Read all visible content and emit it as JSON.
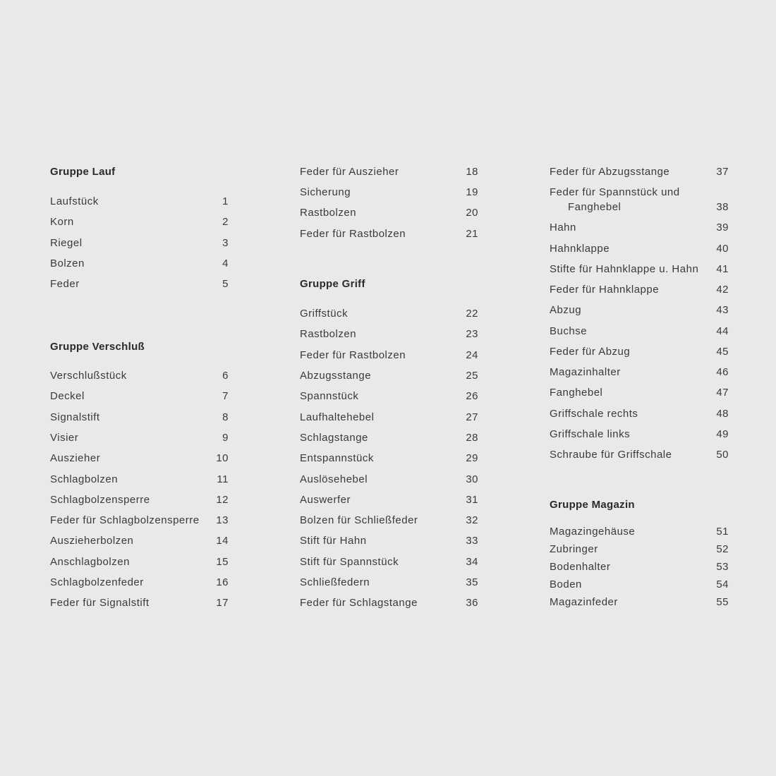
{
  "columns": [
    {
      "sections": [
        {
          "title": "Gruppe Lauf",
          "items": [
            {
              "label": "Laufstück",
              "num": "1"
            },
            {
              "label": "Korn",
              "num": "2"
            },
            {
              "label": "Riegel",
              "num": "3"
            },
            {
              "label": "Bolzen",
              "num": "4"
            },
            {
              "label": "Feder",
              "num": "5"
            }
          ]
        },
        {
          "title": "Gruppe Verschluß",
          "items": [
            {
              "label": "Verschlußstück",
              "num": "6"
            },
            {
              "label": "Deckel",
              "num": "7"
            },
            {
              "label": "Signalstift",
              "num": "8"
            },
            {
              "label": "Visier",
              "num": "9"
            },
            {
              "label": "Auszieher",
              "num": "10"
            },
            {
              "label": "Schlagbolzen",
              "num": "11"
            },
            {
              "label": "Schlagbolzensperre",
              "num": "12"
            },
            {
              "label": "Feder für Schlagbolzensperre",
              "num": "13"
            },
            {
              "label": "Auszieherbolzen",
              "num": "14"
            },
            {
              "label": "Anschlagbolzen",
              "num": "15"
            },
            {
              "label": "Schlagbolzenfeder",
              "num": "16"
            },
            {
              "label": "Feder für Signalstift",
              "num": "17"
            }
          ]
        }
      ]
    },
    {
      "sections": [
        {
          "title": "",
          "items": [
            {
              "label": "Feder für Auszieher",
              "num": "18"
            },
            {
              "label": "Sicherung",
              "num": "19"
            },
            {
              "label": "Rastbolzen",
              "num": "20"
            },
            {
              "label": "Feder für Rastbolzen",
              "num": "21"
            }
          ]
        },
        {
          "title": "Gruppe Griff",
          "items": [
            {
              "label": "Griffstück",
              "num": "22"
            },
            {
              "label": "Rastbolzen",
              "num": "23"
            },
            {
              "label": "Feder für Rastbolzen",
              "num": "24"
            },
            {
              "label": "Abzugsstange",
              "num": "25"
            },
            {
              "label": "Spannstück",
              "num": "26"
            },
            {
              "label": "Laufhaltehebel",
              "num": "27"
            },
            {
              "label": "Schlagstange",
              "num": "28"
            },
            {
              "label": "Entspannstück",
              "num": "29"
            },
            {
              "label": "Auslösehebel",
              "num": "30"
            },
            {
              "label": "Auswerfer",
              "num": "31"
            },
            {
              "label": "Bolzen für Schließfeder",
              "num": "32"
            },
            {
              "label": "Stift für Hahn",
              "num": "33"
            },
            {
              "label": "Stift für Spannstück",
              "num": "34"
            },
            {
              "label": "Schließfedern",
              "num": "35"
            },
            {
              "label": "Feder für Schlagstange",
              "num": "36"
            }
          ]
        }
      ]
    },
    {
      "sections": [
        {
          "title": "",
          "items": [
            {
              "label": "Feder für Abzugsstange",
              "num": "37"
            },
            {
              "label": "Feder für Spannstück und",
              "label2": "Fanghebel",
              "num": "38"
            },
            {
              "label": "Hahn",
              "num": "39"
            },
            {
              "label": "Hahnklappe",
              "num": "40"
            },
            {
              "label": "Stifte für Hahnklappe u. Hahn",
              "num": "41"
            },
            {
              "label": "Feder für Hahnklappe",
              "num": "42"
            },
            {
              "label": "Abzug",
              "num": "43"
            },
            {
              "label": "Buchse",
              "num": "44"
            },
            {
              "label": "Feder für Abzug",
              "num": "45"
            },
            {
              "label": "Magazinhalter",
              "num": "46"
            },
            {
              "label": "Fanghebel",
              "num": "47"
            },
            {
              "label": "Griffschale rechts",
              "num": "48"
            },
            {
              "label": "Griffschale links",
              "num": "49"
            },
            {
              "label": "Schraube für Griffschale",
              "num": "50"
            }
          ]
        },
        {
          "title": "Gruppe Magazin",
          "items": [
            {
              "label": "Magazingehäuse",
              "num": "51"
            },
            {
              "label": "Zubringer",
              "num": "52"
            },
            {
              "label": "Bodenhalter",
              "num": "53"
            },
            {
              "label": "Boden",
              "num": "54"
            },
            {
              "label": "Magazinfeder",
              "num": "55"
            }
          ]
        }
      ]
    }
  ]
}
